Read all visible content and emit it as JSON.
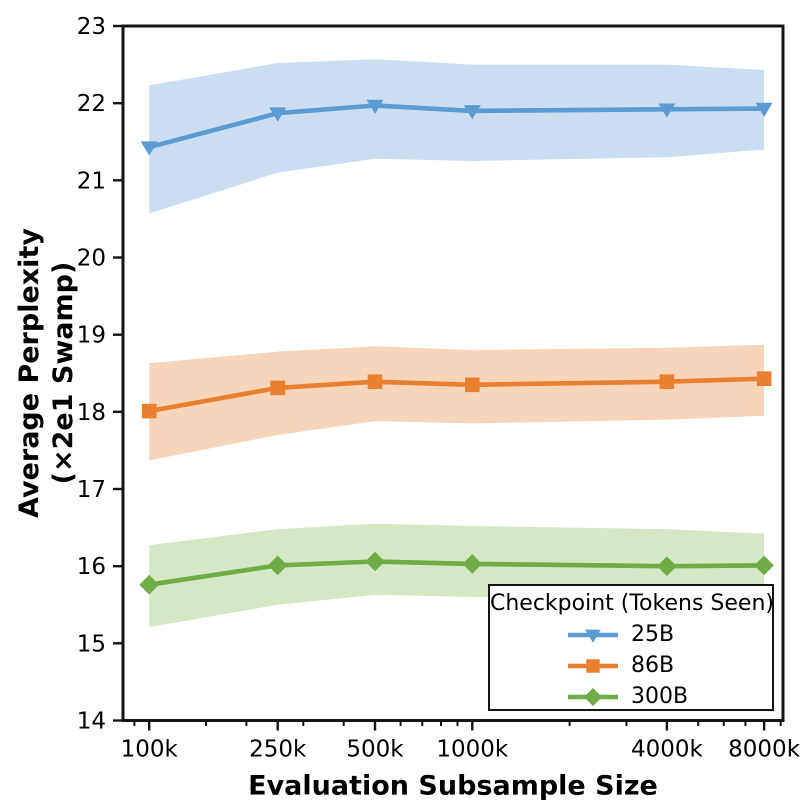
{
  "chart_data": {
    "type": "line",
    "title": "",
    "xlabel": "Evaluation Subsample Size",
    "ylabel": "Average Perplexity (×2e1 Swamp)",
    "ylabel_lines": [
      "Average Perplexity",
      "(×2e1 Swamp)"
    ],
    "x_scale": "log",
    "grid": false,
    "ylim": [
      14,
      23
    ],
    "xlim_k": [
      83,
      9150
    ],
    "y_ticks": [
      14,
      15,
      16,
      17,
      18,
      19,
      20,
      21,
      22,
      23
    ],
    "y_tick_labels": [
      "14",
      "15",
      "16",
      "17",
      "18",
      "19",
      "20",
      "21",
      "22",
      "23"
    ],
    "x_ticks_k": [
      100,
      250,
      500,
      1000,
      4000,
      8000
    ],
    "x_tick_labels": [
      "100k",
      "250k",
      "500k",
      "1000k",
      "4000k",
      "8000k"
    ],
    "x_minor_ticks_k": [
      90,
      150,
      200,
      300,
      400,
      600,
      700,
      800,
      900,
      2000,
      3000,
      5000,
      6000,
      7000,
      9000
    ],
    "x_k": [
      100,
      250,
      500,
      1000,
      4000,
      8000
    ],
    "legend": {
      "title": "Checkpoint (Tokens Seen)",
      "position": "lower right",
      "entries": [
        "25B",
        "86B",
        "300B"
      ]
    },
    "series": [
      {
        "name": "25B",
        "marker": "triangle-down",
        "color": "#5B9BD1",
        "band_color": "#CBDDF1",
        "values": [
          21.43,
          21.87,
          21.97,
          21.9,
          21.92,
          21.93
        ],
        "band_lower": [
          20.57,
          21.1,
          21.28,
          21.25,
          21.3,
          21.4
        ],
        "band_upper": [
          22.23,
          22.52,
          22.57,
          22.5,
          22.5,
          22.43
        ]
      },
      {
        "name": "86B",
        "marker": "square",
        "color": "#E8802F",
        "band_color": "#F7D5BB",
        "values": [
          18.01,
          18.31,
          18.39,
          18.35,
          18.39,
          18.43
        ],
        "band_lower": [
          17.37,
          17.7,
          17.88,
          17.85,
          17.9,
          17.95
        ],
        "band_upper": [
          18.63,
          18.78,
          18.85,
          18.8,
          18.83,
          18.87
        ]
      },
      {
        "name": "300B",
        "marker": "diamond",
        "color": "#6DAC46",
        "band_color": "#D6E7C6",
        "values": [
          15.76,
          16.01,
          16.06,
          16.03,
          16.0,
          16.01
        ],
        "band_lower": [
          15.21,
          15.5,
          15.63,
          15.6,
          15.58,
          15.6
        ],
        "band_upper": [
          16.27,
          16.48,
          16.55,
          16.52,
          16.48,
          16.42
        ]
      }
    ],
    "style": {
      "text_color": "#000000",
      "frame_color": "#141414"
    }
  }
}
